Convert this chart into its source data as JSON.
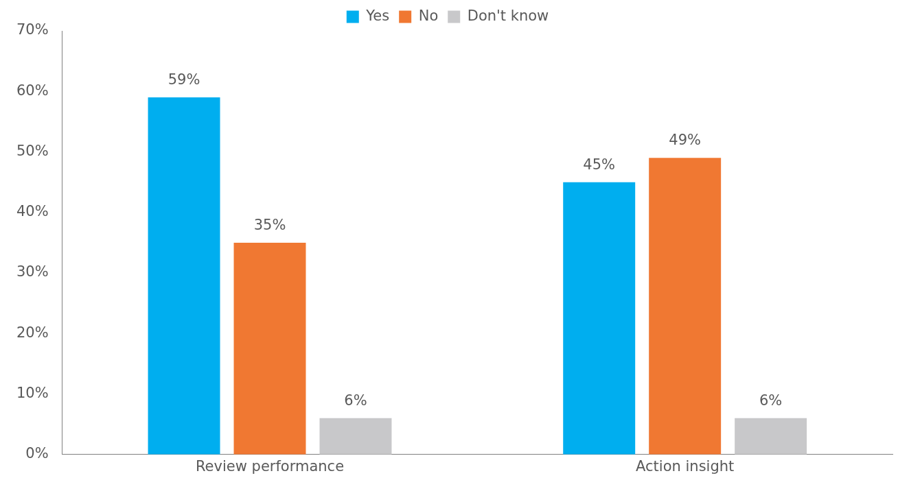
{
  "chart_data": {
    "type": "bar",
    "categories": [
      "Review performance",
      "Action insight"
    ],
    "series": [
      {
        "name": "Yes",
        "color": "#00aeef",
        "values": [
          59,
          45
        ],
        "value_labels": [
          "59%",
          "45%"
        ]
      },
      {
        "name": "No",
        "color": "#f07832",
        "values": [
          35,
          49
        ],
        "value_labels": [
          "35%",
          "49%"
        ]
      },
      {
        "name": "Don't know",
        "color": "#c8c8ca",
        "values": [
          6,
          6
        ],
        "value_labels": [
          "6%",
          "6%"
        ]
      }
    ],
    "ylim": [
      0,
      70
    ],
    "yticks": [
      {
        "value": 0,
        "label": "0%"
      },
      {
        "value": 10,
        "label": "10%"
      },
      {
        "value": 20,
        "label": "20%"
      },
      {
        "value": 30,
        "label": "30%"
      },
      {
        "value": 40,
        "label": "40%"
      },
      {
        "value": 50,
        "label": "50%"
      },
      {
        "value": 60,
        "label": "60%"
      },
      {
        "value": 70,
        "label": "70%"
      }
    ],
    "grid": false,
    "legend": "top"
  }
}
